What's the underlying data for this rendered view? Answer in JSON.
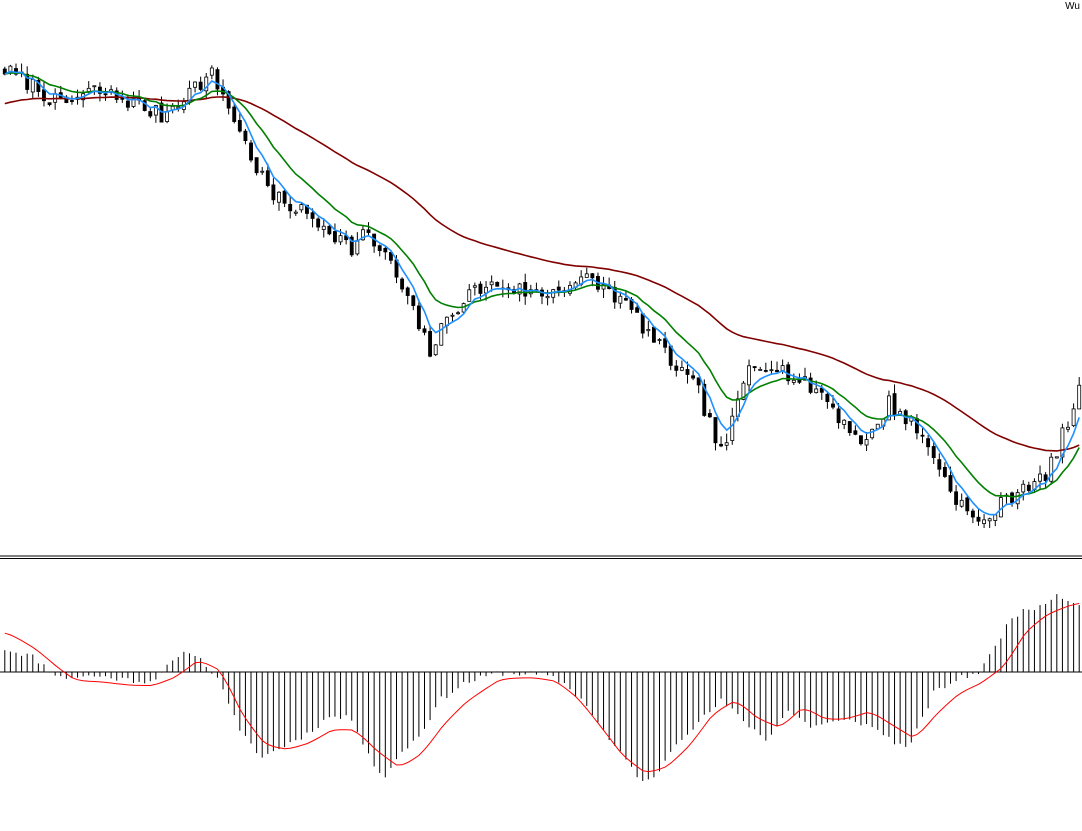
{
  "corner_label": "Wu",
  "colors": {
    "candle_up_fill": "#ffffff",
    "candle_down_fill": "#000000",
    "candle_outline": "#000000",
    "ma_fast": "#1e90ff",
    "ma_medium": "#008000",
    "ma_slow": "#800000",
    "osc_histogram": "#000000",
    "osc_signal": "#ff0000",
    "separator": "#000000",
    "background": "#ffffff"
  },
  "chart_data": [
    {
      "type": "candlestick",
      "title": "",
      "xlabel": "",
      "ylabel": "",
      "grid": false,
      "ylim": [
        0,
        100
      ],
      "anchors": [
        [
          0,
          93
        ],
        [
          5,
          90
        ],
        [
          10,
          86
        ],
        [
          16,
          89
        ],
        [
          22,
          87
        ],
        [
          28,
          84
        ],
        [
          33,
          89
        ],
        [
          37,
          92
        ],
        [
          40,
          86
        ],
        [
          44,
          76
        ],
        [
          48,
          68
        ],
        [
          52,
          66
        ],
        [
          58,
          62
        ],
        [
          62,
          58
        ],
        [
          64,
          61
        ],
        [
          68,
          57
        ],
        [
          72,
          48
        ],
        [
          76,
          38
        ],
        [
          80,
          46
        ],
        [
          84,
          50
        ],
        [
          88,
          51
        ],
        [
          92,
          50
        ],
        [
          96,
          49
        ],
        [
          100,
          51
        ],
        [
          104,
          52
        ],
        [
          108,
          50
        ],
        [
          112,
          46
        ],
        [
          116,
          40
        ],
        [
          120,
          35
        ],
        [
          124,
          30
        ],
        [
          128,
          18
        ],
        [
          130,
          24
        ],
        [
          133,
          35
        ],
        [
          137,
          36
        ],
        [
          142,
          32
        ],
        [
          146,
          30
        ],
        [
          150,
          24
        ],
        [
          154,
          20
        ],
        [
          158,
          28
        ],
        [
          162,
          24
        ],
        [
          166,
          18
        ],
        [
          168,
          13
        ],
        [
          171,
          8
        ],
        [
          174,
          4
        ],
        [
          178,
          8
        ],
        [
          182,
          12
        ],
        [
          186,
          13
        ],
        [
          188,
          19
        ],
        [
          190,
          24
        ],
        [
          192,
          30
        ]
      ],
      "ma_fast_period": 5,
      "ma_medium_period": 13,
      "ma_slow_period": 50
    },
    {
      "type": "bar",
      "title": "",
      "xlabel": "",
      "ylabel": "",
      "grid": false,
      "zero_line": true,
      "ylim": [
        -100,
        100
      ],
      "anchors": [
        [
          0,
          24
        ],
        [
          5,
          16
        ],
        [
          8,
          2
        ],
        [
          10,
          -6
        ],
        [
          16,
          -4
        ],
        [
          22,
          -8
        ],
        [
          26,
          -10
        ],
        [
          30,
          10
        ],
        [
          33,
          22
        ],
        [
          36,
          8
        ],
        [
          39,
          -16
        ],
        [
          42,
          -62
        ],
        [
          46,
          -88
        ],
        [
          50,
          -76
        ],
        [
          54,
          -64
        ],
        [
          58,
          -46
        ],
        [
          62,
          -48
        ],
        [
          66,
          -96
        ],
        [
          68,
          -110
        ],
        [
          70,
          -88
        ],
        [
          74,
          -66
        ],
        [
          78,
          -28
        ],
        [
          82,
          -12
        ],
        [
          88,
          -1
        ],
        [
          94,
          -2
        ],
        [
          97,
          -4
        ],
        [
          100,
          -12
        ],
        [
          104,
          -34
        ],
        [
          108,
          -70
        ],
        [
          112,
          -98
        ],
        [
          114,
          -114
        ],
        [
          116,
          -110
        ],
        [
          120,
          -72
        ],
        [
          124,
          -52
        ],
        [
          128,
          -30
        ],
        [
          132,
          -50
        ],
        [
          136,
          -70
        ],
        [
          140,
          -40
        ],
        [
          144,
          -56
        ],
        [
          148,
          -52
        ],
        [
          152,
          -50
        ],
        [
          156,
          -60
        ],
        [
          160,
          -76
        ],
        [
          162,
          -74
        ],
        [
          166,
          -22
        ],
        [
          170,
          -8
        ],
        [
          174,
          0
        ],
        [
          176,
          16
        ],
        [
          180,
          58
        ],
        [
          184,
          66
        ],
        [
          188,
          80
        ],
        [
          192,
          70
        ]
      ],
      "signal_anchors": [
        [
          0,
          40
        ],
        [
          5,
          22
        ],
        [
          9,
          2
        ],
        [
          12,
          -10
        ],
        [
          16,
          -10
        ],
        [
          22,
          -14
        ],
        [
          26,
          -14
        ],
        [
          30,
          -4
        ],
        [
          34,
          14
        ],
        [
          38,
          0
        ],
        [
          42,
          -50
        ],
        [
          46,
          -78
        ],
        [
          50,
          -80
        ],
        [
          54,
          -72
        ],
        [
          58,
          -58
        ],
        [
          62,
          -60
        ],
        [
          66,
          -84
        ],
        [
          70,
          -100
        ],
        [
          74,
          -82
        ],
        [
          78,
          -50
        ],
        [
          82,
          -28
        ],
        [
          88,
          -6
        ],
        [
          94,
          -6
        ],
        [
          98,
          -10
        ],
        [
          102,
          -30
        ],
        [
          106,
          -60
        ],
        [
          110,
          -90
        ],
        [
          114,
          -106
        ],
        [
          118,
          -96
        ],
        [
          122,
          -72
        ],
        [
          126,
          -40
        ],
        [
          130,
          -28
        ],
        [
          134,
          -50
        ],
        [
          138,
          -58
        ],
        [
          142,
          -34
        ],
        [
          146,
          -50
        ],
        [
          150,
          -48
        ],
        [
          154,
          -40
        ],
        [
          158,
          -56
        ],
        [
          162,
          -70
        ],
        [
          166,
          -40
        ],
        [
          170,
          -20
        ],
        [
          174,
          -10
        ],
        [
          178,
          8
        ],
        [
          182,
          46
        ],
        [
          186,
          62
        ],
        [
          190,
          70
        ],
        [
          192,
          72
        ]
      ]
    }
  ]
}
